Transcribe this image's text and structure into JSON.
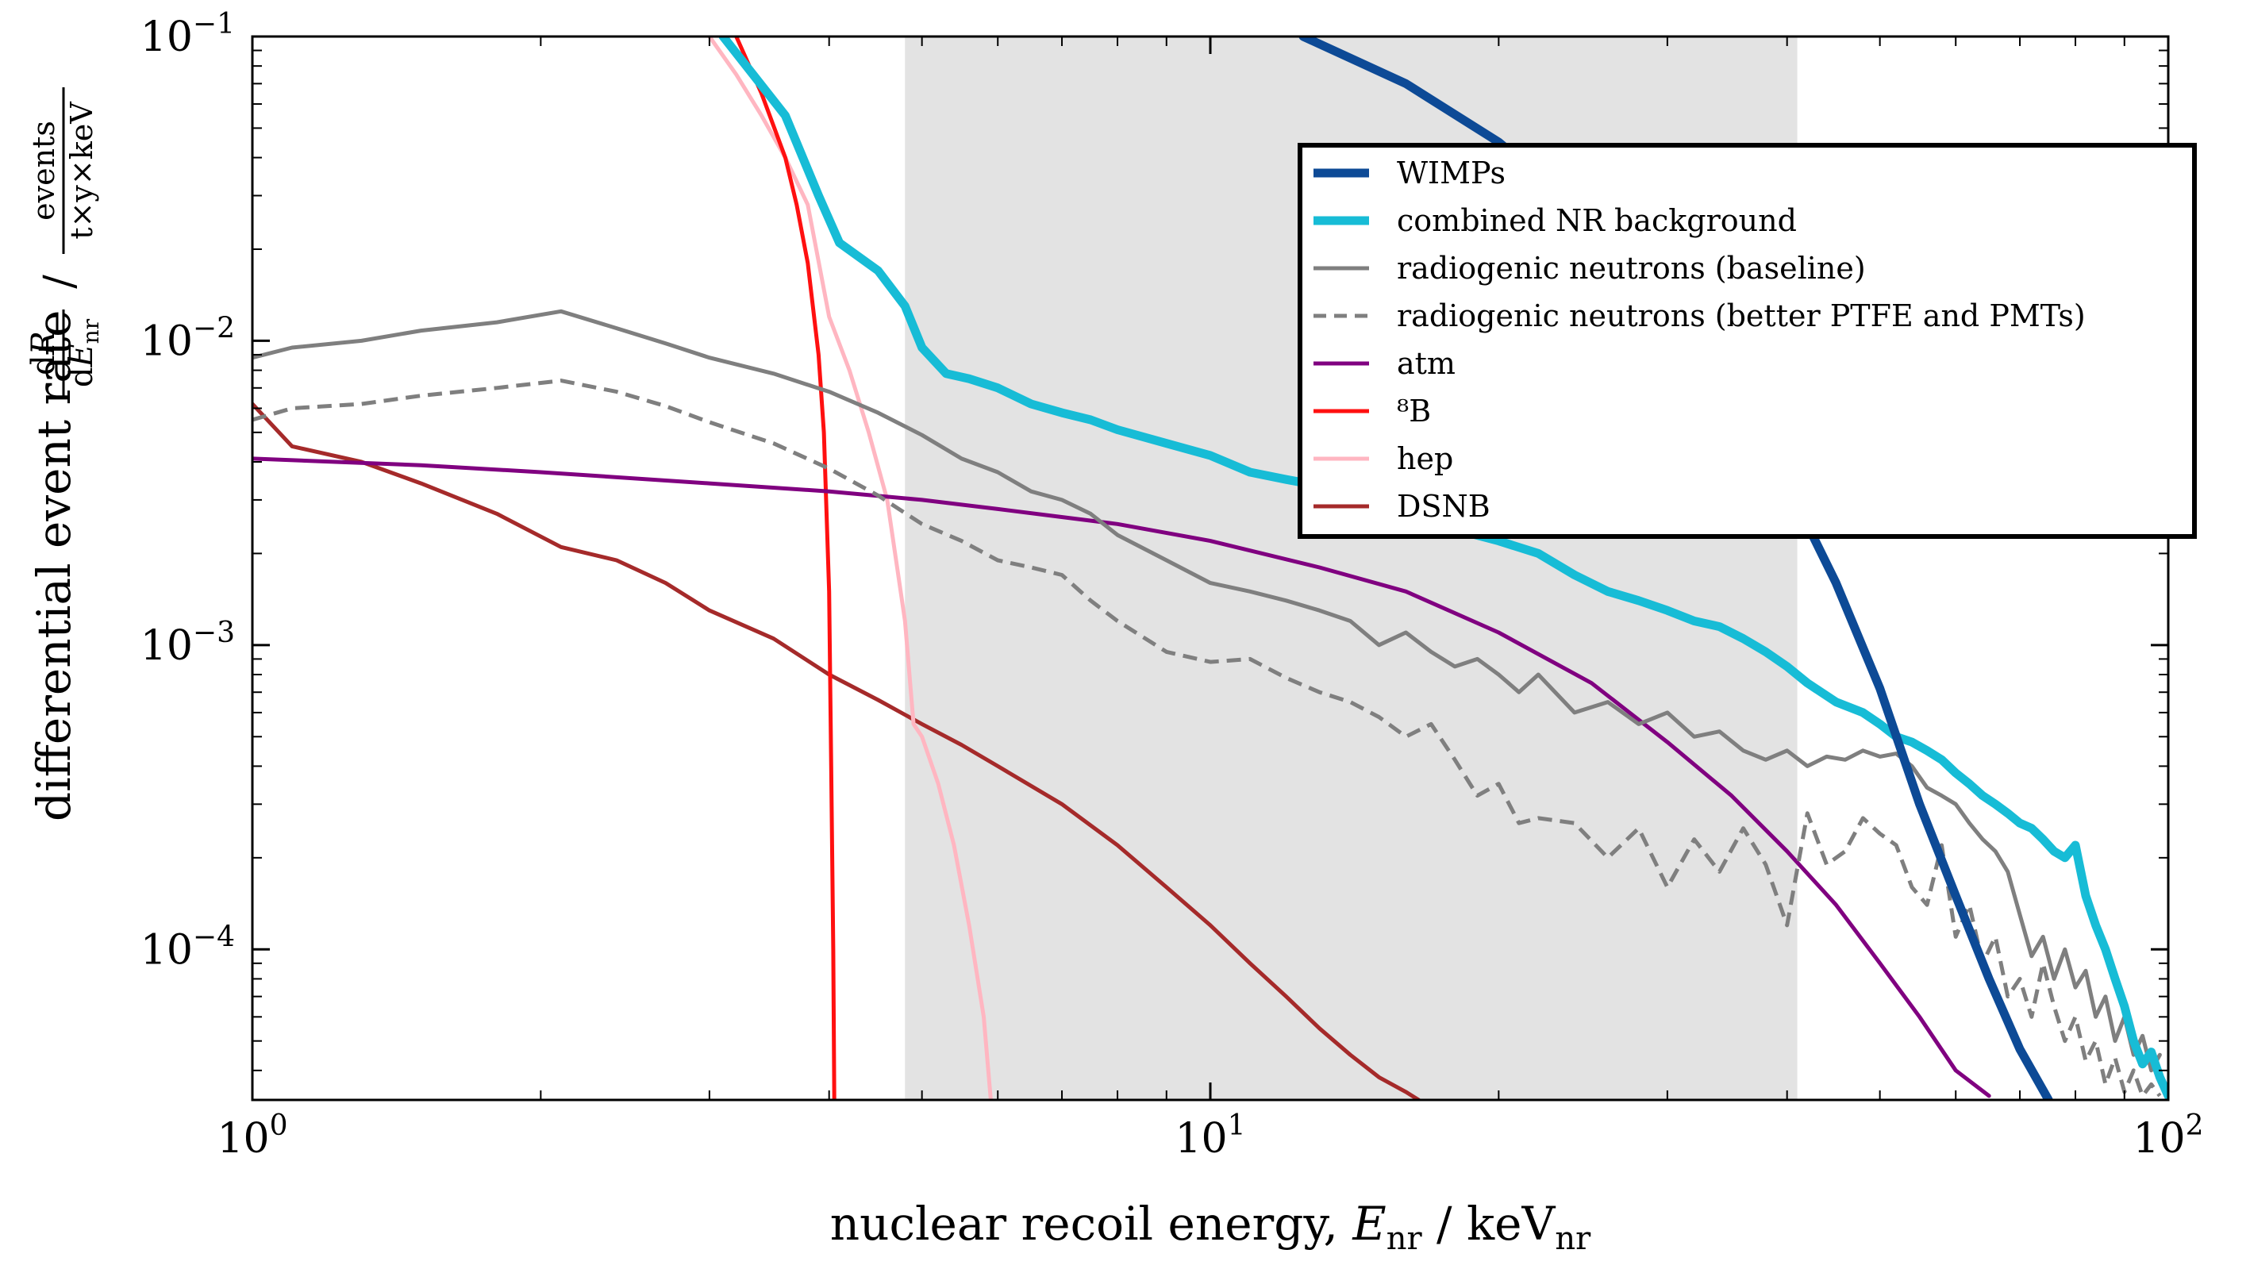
{
  "chart_data": {
    "type": "line",
    "xscale": "log",
    "yscale": "log",
    "xlim": [
      1,
      100
    ],
    "ylim": [
      3.2e-05,
      0.1
    ],
    "xlabel": "nuclear recoil energy, E_nr / keV_nr",
    "ylabel": "differential event rate dR/dE_nr / events/(t×y×keV)",
    "x_ticks": [
      {
        "value": 1,
        "base": "10",
        "exp": "0"
      },
      {
        "value": 10,
        "base": "10",
        "exp": "1"
      },
      {
        "value": 100,
        "base": "10",
        "exp": "2"
      }
    ],
    "y_ticks": [
      {
        "value": 0.0001,
        "base": "10",
        "exp": "−4"
      },
      {
        "value": 0.001,
        "base": "10",
        "exp": "−3"
      },
      {
        "value": 0.01,
        "base": "10",
        "exp": "−2"
      },
      {
        "value": 0.1,
        "base": "10",
        "exp": "−1"
      }
    ],
    "shaded_region": {
      "x": [
        4.8,
        41
      ],
      "color": "#e3e3e3"
    },
    "grid": false,
    "legend": {
      "position": "upper right"
    },
    "series": [
      {
        "name": "WIMPs",
        "color": "#0d4a96",
        "dash": "solid",
        "width": "thick",
        "x": [
          12.5,
          16,
          20,
          25,
          30,
          35,
          40,
          45,
          50,
          55,
          60,
          65,
          70,
          75
        ],
        "y": [
          0.1,
          0.07,
          0.045,
          0.025,
          0.013,
          0.0068,
          0.0034,
          0.0016,
          0.00072,
          0.0003,
          0.00015,
          8e-05,
          4.7e-05,
          3.2e-05
        ]
      },
      {
        "name": "combined NR background",
        "color": "#17bcd6",
        "dash": "solid",
        "width": "thick",
        "x": [
          3.1,
          3.6,
          3.9,
          4.1,
          4.5,
          4.8,
          5.0,
          5.3,
          5.6,
          6.0,
          6.5,
          7.0,
          7.5,
          8.0,
          9.0,
          10.0,
          11.0,
          12.0,
          14.0,
          16.0,
          18.0,
          20.0,
          22.0,
          24.0,
          26.0,
          28.0,
          30.0,
          32.0,
          34.0,
          36.0,
          38.0,
          40.0,
          42.0,
          45.0,
          48.0,
          50.0,
          52.0,
          54.0,
          56.0,
          58.0,
          60.0,
          62.0,
          64.0,
          66.0,
          68.0,
          70.0,
          72.0,
          74.0,
          76.0,
          78.0,
          80.0,
          82.0,
          84.0,
          86.0,
          88.0,
          90.0,
          92.0,
          94.0,
          96.0,
          98.0,
          100.0
        ],
        "y": [
          0.1,
          0.055,
          0.03,
          0.021,
          0.017,
          0.013,
          0.0095,
          0.0078,
          0.0075,
          0.007,
          0.0062,
          0.0058,
          0.0055,
          0.0051,
          0.0046,
          0.0042,
          0.0037,
          0.0035,
          0.0032,
          0.0028,
          0.0024,
          0.0022,
          0.002,
          0.0017,
          0.0015,
          0.0014,
          0.0013,
          0.0012,
          0.00115,
          0.00105,
          0.00095,
          0.00085,
          0.00075,
          0.00065,
          0.0006,
          0.00055,
          0.0005,
          0.00048,
          0.00045,
          0.00042,
          0.00038,
          0.00035,
          0.00032,
          0.0003,
          0.00028,
          0.00026,
          0.00025,
          0.00023,
          0.00021,
          0.0002,
          0.00022,
          0.00015,
          0.00012,
          0.0001,
          8e-05,
          6.5e-05,
          5e-05,
          4.2e-05,
          4.6e-05,
          3.8e-05,
          3.3e-05
        ]
      },
      {
        "name": "radiogenic neutrons (baseline)",
        "color": "#7f7f7f",
        "dash": "solid",
        "width": "medium",
        "x": [
          1.0,
          1.1,
          1.3,
          1.5,
          1.8,
          2.1,
          2.4,
          2.7,
          3.0,
          3.5,
          4.0,
          4.5,
          5.0,
          5.5,
          6.0,
          6.5,
          7.0,
          7.5,
          8.0,
          9.0,
          10.0,
          11.0,
          12.0,
          13.0,
          14.0,
          15.0,
          16.0,
          17.0,
          18.0,
          19.0,
          20.0,
          21.0,
          22.0,
          24.0,
          26.0,
          28.0,
          30.0,
          32.0,
          34.0,
          36.0,
          38.0,
          40.0,
          42.0,
          44.0,
          46.0,
          48.0,
          50.0,
          52.0,
          54.0,
          56.0,
          58.0,
          60.0,
          62.0,
          64.0,
          66.0,
          68.0,
          70.0,
          72.0,
          74.0,
          76.0,
          78.0,
          80.0,
          82.0,
          84.0,
          86.0,
          88.0,
          90.0,
          92.0,
          94.0,
          96.0,
          98.0
        ],
        "y": [
          0.0088,
          0.0095,
          0.01,
          0.0108,
          0.0115,
          0.0125,
          0.011,
          0.0098,
          0.0088,
          0.0078,
          0.0068,
          0.0058,
          0.0049,
          0.0041,
          0.0037,
          0.0032,
          0.003,
          0.0027,
          0.0023,
          0.0019,
          0.0016,
          0.0015,
          0.0014,
          0.0013,
          0.0012,
          0.001,
          0.0011,
          0.00095,
          0.00085,
          0.0009,
          0.0008,
          0.0007,
          0.0008,
          0.0006,
          0.00065,
          0.00055,
          0.0006,
          0.0005,
          0.00052,
          0.00045,
          0.00042,
          0.00045,
          0.0004,
          0.00043,
          0.00042,
          0.00045,
          0.00043,
          0.00044,
          0.0004,
          0.00034,
          0.00032,
          0.0003,
          0.00026,
          0.00023,
          0.00021,
          0.00018,
          0.00013,
          9.5e-05,
          0.00011,
          8e-05,
          0.0001,
          7.5e-05,
          8.5e-05,
          6e-05,
          7e-05,
          5e-05,
          6e-05,
          4.5e-05,
          5.2e-05,
          4e-05,
          4.5e-05
        ]
      },
      {
        "name": "radiogenic neutrons (better PTFE and PMTs)",
        "color": "#7f7f7f",
        "dash": "dashed",
        "width": "medium",
        "x": [
          1.0,
          1.1,
          1.3,
          1.5,
          1.8,
          2.1,
          2.4,
          2.7,
          3.0,
          3.5,
          4.0,
          4.5,
          5.0,
          5.5,
          6.0,
          6.5,
          7.0,
          7.5,
          8.0,
          9.0,
          10.0,
          11.0,
          12.0,
          13.0,
          14.0,
          15.0,
          16.0,
          17.0,
          18.0,
          19.0,
          20.0,
          21.0,
          22.0,
          24.0,
          26.0,
          28.0,
          30.0,
          32.0,
          34.0,
          36.0,
          38.0,
          40.0,
          42.0,
          44.0,
          46.0,
          48.0,
          50.0,
          52.0,
          54.0,
          56.0,
          58.0,
          60.0,
          62.0,
          64.0,
          66.0,
          68.0,
          70.0,
          72.0,
          74.0,
          76.0,
          78.0,
          80.0,
          82.0,
          84.0,
          86.0,
          88.0,
          90.0,
          92.0,
          94.0,
          96.0,
          98.0
        ],
        "y": [
          0.0055,
          0.006,
          0.0062,
          0.0066,
          0.007,
          0.0074,
          0.0068,
          0.0061,
          0.0054,
          0.0046,
          0.0038,
          0.0031,
          0.0025,
          0.0022,
          0.0019,
          0.0018,
          0.0017,
          0.0014,
          0.0012,
          0.00095,
          0.00088,
          0.0009,
          0.00078,
          0.0007,
          0.00065,
          0.00058,
          0.0005,
          0.00055,
          0.00042,
          0.00032,
          0.00035,
          0.00026,
          0.00027,
          0.00026,
          0.0002,
          0.00025,
          0.00016,
          0.00023,
          0.00018,
          0.00025,
          0.00019,
          0.00012,
          0.00028,
          0.00019,
          0.00021,
          0.00027,
          0.00024,
          0.00022,
          0.00016,
          0.00014,
          0.00022,
          0.00011,
          0.00014,
          9e-05,
          0.00011,
          7e-05,
          8e-05,
          6e-05,
          9e-05,
          6.5e-05,
          5e-05,
          6e-05,
          4.3e-05,
          5e-05,
          3.6e-05,
          4.4e-05,
          3.4e-05,
          4e-05,
          3.3e-05,
          3.6e-05,
          3.3e-05
        ]
      },
      {
        "name": "atm",
        "color": "#800080",
        "dash": "solid",
        "width": "medium",
        "x": [
          1.0,
          1.5,
          2.0,
          3.0,
          4.0,
          5.0,
          6.0,
          8.0,
          10.0,
          13.0,
          16.0,
          20.0,
          25.0,
          30.0,
          35.0,
          40.0,
          45.0,
          50.0,
          55.0,
          60.0,
          65.0
        ],
        "y": [
          0.0041,
          0.0039,
          0.0037,
          0.0034,
          0.0032,
          0.003,
          0.0028,
          0.0025,
          0.0022,
          0.0018,
          0.0015,
          0.0011,
          0.00075,
          0.00048,
          0.00032,
          0.00021,
          0.00014,
          9e-05,
          6e-05,
          4e-05,
          3.3e-05
        ]
      },
      {
        "name": "⁸B",
        "color": "#ff1010",
        "dash": "solid",
        "width": "medium",
        "x": [
          3.2,
          3.4,
          3.6,
          3.7,
          3.8,
          3.9,
          3.95,
          4.0,
          4.02,
          4.04,
          4.05
        ],
        "y": [
          0.1,
          0.065,
          0.04,
          0.028,
          0.018,
          0.009,
          0.005,
          0.0015,
          0.0004,
          0.0001,
          3.2e-05
        ]
      },
      {
        "name": "hep",
        "color": "#ffb6c1",
        "dash": "solid",
        "width": "medium",
        "x": [
          3.0,
          3.2,
          3.4,
          3.6,
          3.8,
          4.0,
          4.2,
          4.4,
          4.6,
          4.8,
          4.9,
          5.0,
          5.2,
          5.4,
          5.6,
          5.8,
          5.9
        ],
        "y": [
          0.1,
          0.075,
          0.055,
          0.04,
          0.028,
          0.012,
          0.008,
          0.005,
          0.003,
          0.0012,
          0.00055,
          0.0005,
          0.00035,
          0.00022,
          0.00012,
          6e-05,
          3.2e-05
        ]
      },
      {
        "name": "DSNB",
        "color": "#a52a2a",
        "dash": "solid",
        "width": "medium",
        "x": [
          1.0,
          1.1,
          1.3,
          1.5,
          1.8,
          2.1,
          2.4,
          2.7,
          3.0,
          3.5,
          4.0,
          4.5,
          5.0,
          5.5,
          6.0,
          7.0,
          8.0,
          9.0,
          10.0,
          11.0,
          12.0,
          13.0,
          14.0,
          15.0,
          16.0,
          16.5
        ],
        "y": [
          0.0062,
          0.0045,
          0.004,
          0.0034,
          0.0027,
          0.0021,
          0.0019,
          0.0016,
          0.0013,
          0.00105,
          0.0008,
          0.00066,
          0.00055,
          0.00047,
          0.0004,
          0.0003,
          0.00022,
          0.00016,
          0.00012,
          9e-05,
          7e-05,
          5.5e-05,
          4.5e-05,
          3.8e-05,
          3.4e-05,
          3.2e-05
        ]
      }
    ]
  }
}
